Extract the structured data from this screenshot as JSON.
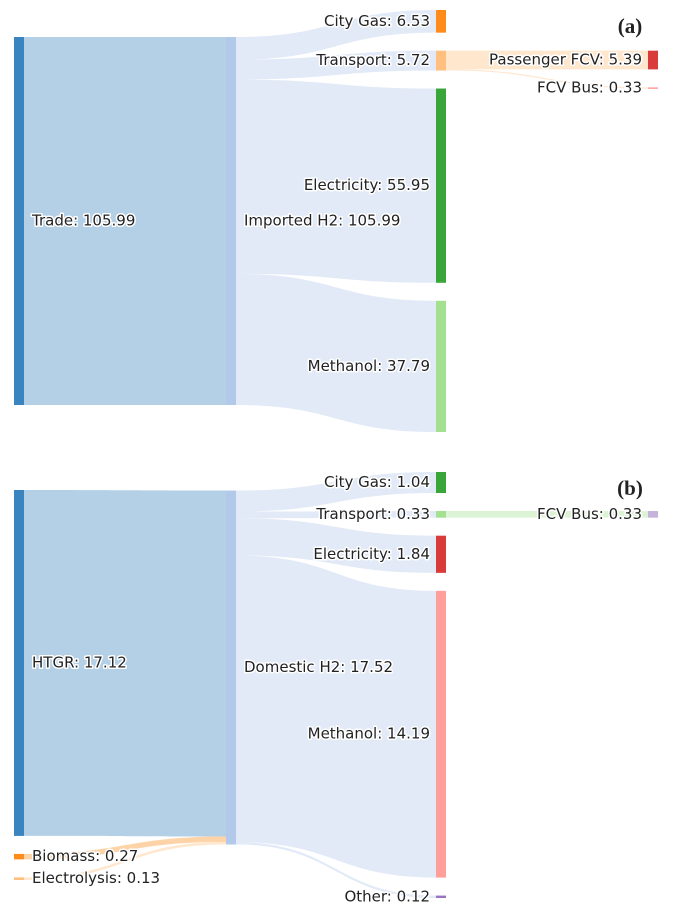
{
  "chart_data": [
    {
      "type": "sankey",
      "title": "(a)",
      "nodes": [
        {
          "label": "Trade: 105.99",
          "value": 105.99,
          "color": "#3a84c0"
        },
        {
          "label": "Imported H2: 105.99",
          "value": 105.99,
          "color": "#b3c9ea"
        },
        {
          "label": "City Gas: 6.53",
          "value": 6.53,
          "color": "#ff8c1a"
        },
        {
          "label": "Transport: 5.72",
          "value": 5.72,
          "color": "#ffbf7f"
        },
        {
          "label": "Electricity: 55.95",
          "value": 55.95,
          "color": "#3aa63a"
        },
        {
          "label": "Methanol: 37.79",
          "value": 37.79,
          "color": "#a3e090"
        },
        {
          "label": "Passenger FCV: 5.39",
          "value": 5.39,
          "color": "#d93a3a"
        },
        {
          "label": "FCV Bus: 0.33",
          "value": 0.33,
          "color": "#ff9e9b"
        }
      ],
      "links": [
        {
          "source": 0,
          "target": 1,
          "value": 105.99
        },
        {
          "source": 1,
          "target": 2,
          "value": 6.53
        },
        {
          "source": 1,
          "target": 3,
          "value": 5.72
        },
        {
          "source": 1,
          "target": 4,
          "value": 55.95
        },
        {
          "source": 1,
          "target": 5,
          "value": 37.79
        },
        {
          "source": 3,
          "target": 6,
          "value": 5.39
        },
        {
          "source": 3,
          "target": 7,
          "value": 0.33
        }
      ]
    },
    {
      "type": "sankey",
      "title": "(b)",
      "nodes": [
        {
          "label": "HTGR: 17.12",
          "value": 17.12,
          "color": "#3a84c0"
        },
        {
          "label": "Biomass: 0.27",
          "value": 0.27,
          "color": "#ff8c1a"
        },
        {
          "label": "Electrolysis: 0.13",
          "value": 0.13,
          "color": "#ffbf7f"
        },
        {
          "label": "Domestic H2: 17.52",
          "value": 17.52,
          "color": "#b3c9ea"
        },
        {
          "label": "City Gas: 1.04",
          "value": 1.04,
          "color": "#3aa63a"
        },
        {
          "label": "Transport: 0.33",
          "value": 0.33,
          "color": "#a3e090"
        },
        {
          "label": "Electricity: 1.84",
          "value": 1.84,
          "color": "#d93a3a"
        },
        {
          "label": "Methanol: 14.19",
          "value": 14.19,
          "color": "#ff9e9b"
        },
        {
          "label": "Other: 0.12",
          "value": 0.12,
          "color": "#9a72c4"
        },
        {
          "label": "FCV Bus: 0.33",
          "value": 0.33,
          "color": "#c6b3da"
        }
      ],
      "links": [
        {
          "source": 0,
          "target": 3,
          "value": 17.12
        },
        {
          "source": 1,
          "target": 3,
          "value": 0.27
        },
        {
          "source": 2,
          "target": 3,
          "value": 0.13
        },
        {
          "source": 3,
          "target": 4,
          "value": 1.04
        },
        {
          "source": 3,
          "target": 5,
          "value": 0.33
        },
        {
          "source": 3,
          "target": 6,
          "value": 1.84
        },
        {
          "source": 3,
          "target": 7,
          "value": 14.19
        },
        {
          "source": 3,
          "target": 8,
          "value": 0.12
        },
        {
          "source": 5,
          "target": 9,
          "value": 0.33
        }
      ]
    }
  ]
}
